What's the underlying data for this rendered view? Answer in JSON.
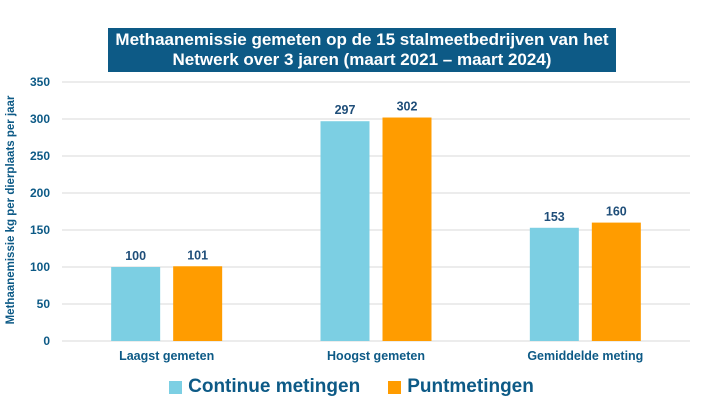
{
  "chart_data": {
    "type": "bar",
    "title_lines": [
      "Methaanemissie gemeten op de 15 stalmeetbedrijven van het",
      "Netwerk over 3 jaren (maart 2021 – maart 2024)"
    ],
    "categories": [
      "Laagst gemeten",
      "Hoogst gemeten",
      "Gemiddelde meting"
    ],
    "series": [
      {
        "name": "Continue metingen",
        "color": "#7ccfe3",
        "values": [
          100,
          297,
          153
        ]
      },
      {
        "name": "Puntmetingen",
        "color": "#ff9c00",
        "values": [
          101,
          302,
          160
        ]
      }
    ],
    "xlabel": "",
    "ylabel": "Methaanemissie kg per dierplaats per jaar",
    "ylim": [
      0,
      350
    ],
    "yticks": [
      0,
      50,
      100,
      150,
      200,
      250,
      300,
      350
    ],
    "grid": true,
    "legend": "bottom"
  }
}
